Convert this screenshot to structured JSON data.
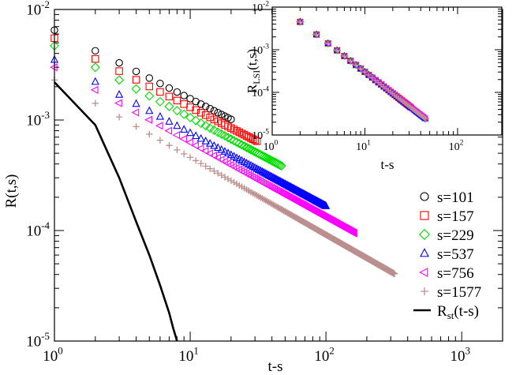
{
  "chart_data": [
    {
      "type": "scatter",
      "panel": "main",
      "xscale": "log",
      "yscale": "log",
      "xlim": [
        1,
        2000
      ],
      "ylim": [
        1e-05,
        0.01
      ],
      "xlabel": "t-s",
      "ylabel": "R(t,s)",
      "x_ticks": [
        {
          "value": 1,
          "base": "10",
          "exp": "0"
        },
        {
          "value": 10,
          "base": "10",
          "exp": "1"
        },
        {
          "value": 100,
          "base": "10",
          "exp": "2"
        },
        {
          "value": 1000,
          "base": "10",
          "exp": "3"
        }
      ],
      "y_ticks": [
        {
          "value": 1e-05,
          "base": "10",
          "exp": "-5"
        },
        {
          "value": 0.0001,
          "base": "10",
          "exp": "-4"
        },
        {
          "value": 0.001,
          "base": "10",
          "exp": "-3"
        },
        {
          "value": 0.01,
          "base": "10",
          "exp": "-2"
        }
      ],
      "legend_position": "right-center",
      "series": [
        {
          "name": "s=101",
          "s": 101,
          "marker": "circle",
          "color": "#000000",
          "x_max": 20,
          "y_at_1": 0.0065,
          "slope": -0.62
        },
        {
          "name": "s=157",
          "s": 157,
          "marker": "square",
          "color": "#ff0000",
          "x_max": 31,
          "y_at_1": 0.0055,
          "slope": -0.625
        },
        {
          "name": "s=229",
          "s": 229,
          "marker": "diamond",
          "color": "#00dd00",
          "x_max": 47,
          "y_at_1": 0.0047,
          "slope": -0.65
        },
        {
          "name": "s=537",
          "s": 537,
          "marker": "triangle-up",
          "color": "#0000ff",
          "x_max": 100,
          "y_at_1": 0.0035,
          "slope": -0.662
        },
        {
          "name": "s=756",
          "s": 756,
          "marker": "triangle-left",
          "color": "#ff00ff",
          "x_max": 162,
          "y_at_1": 0.003,
          "slope": -0.68
        },
        {
          "name": "s=1577",
          "s": 1577,
          "marker": "plus",
          "color": "#bc8f8f",
          "x_max": 320,
          "y_at_1": 0.0023,
          "slope": -0.7
        }
      ],
      "reference_line": {
        "name_main": "R",
        "name_sub": "st",
        "name_tail": "(t-s)",
        "color": "#000000",
        "x": [
          1,
          2,
          3,
          4,
          5,
          6,
          7,
          7.5,
          8
        ],
        "y": [
          0.0022,
          0.0009,
          0.0003,
          0.00012,
          6e-05,
          3.2e-05,
          1.8e-05,
          1.3e-05,
          1e-05
        ]
      }
    },
    {
      "type": "scatter",
      "panel": "inset",
      "xscale": "log",
      "yscale": "log",
      "xlim": [
        1,
        300
      ],
      "ylim": [
        1e-05,
        0.01
      ],
      "xlabel": "t-s",
      "ylabel_main": "R",
      "ylabel_sub": "LSI",
      "ylabel_tail": "(t,s)",
      "x_ticks": [
        {
          "value": 1,
          "base": "10",
          "exp": "0"
        },
        {
          "value": 10,
          "base": "10",
          "exp": "1"
        },
        {
          "value": 100,
          "base": "10",
          "exp": "2"
        }
      ],
      "y_ticks": [
        {
          "value": 1e-05,
          "base": "10",
          "exp": "-5"
        },
        {
          "value": 0.0001,
          "base": "10",
          "exp": "-4"
        },
        {
          "value": 0.001,
          "base": "10",
          "exp": "-3"
        },
        {
          "value": 0.01,
          "base": "10",
          "exp": "-2"
        }
      ],
      "collapse": {
        "y_at_2": 0.0045,
        "slope": -1.68
      }
    }
  ]
}
